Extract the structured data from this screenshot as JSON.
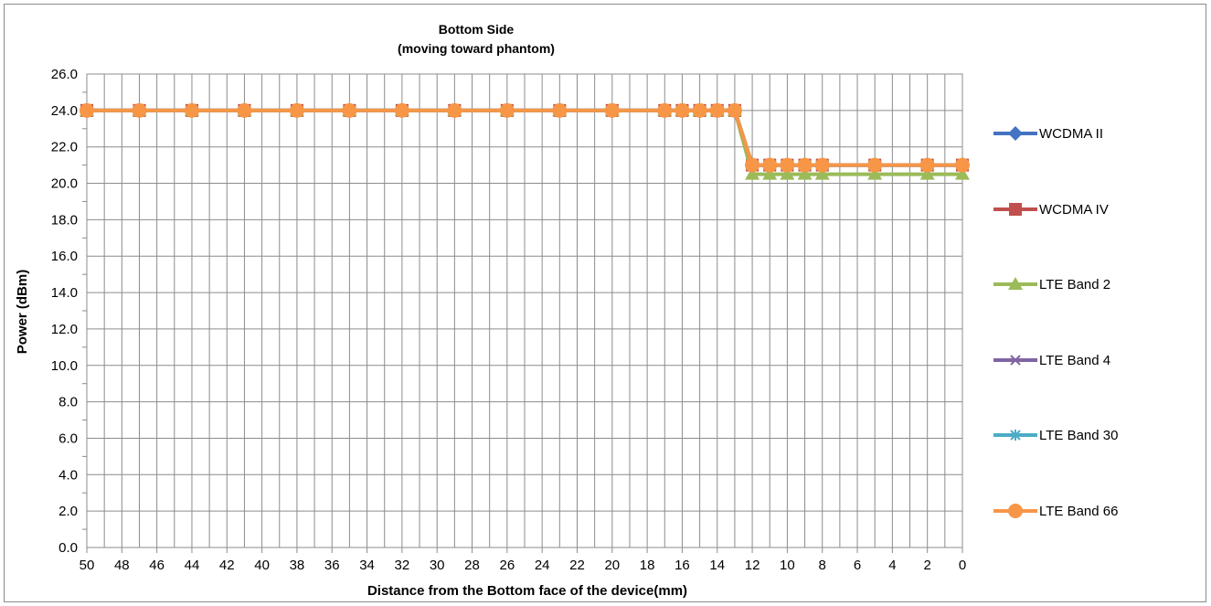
{
  "chart_data": {
    "type": "line",
    "title": "Bottom Side",
    "subtitle": "(moving toward phantom)",
    "xlabel": "Distance from the Bottom face of the device(mm)",
    "ylabel": "Power (dBm)",
    "xlim": [
      50,
      0
    ],
    "ylim": [
      0,
      26
    ],
    "y_ticks": [
      "0.0",
      "2.0",
      "4.0",
      "6.0",
      "8.0",
      "10.0",
      "12.0",
      "14.0",
      "16.0",
      "18.0",
      "20.0",
      "22.0",
      "24.0",
      "26.0"
    ],
    "x_ticks": [
      "50",
      "48",
      "46",
      "44",
      "42",
      "40",
      "38",
      "36",
      "34",
      "32",
      "30",
      "28",
      "26",
      "24",
      "22",
      "20",
      "18",
      "16",
      "14",
      "12",
      "10",
      "8",
      "6",
      "4",
      "2",
      "0"
    ],
    "grid": true,
    "legend_position": "right",
    "x": [
      50,
      47,
      44,
      41,
      38,
      35,
      32,
      29,
      26,
      23,
      20,
      17,
      16,
      15,
      14,
      13,
      12,
      11,
      10,
      9,
      8,
      5,
      2,
      0
    ],
    "series": [
      {
        "name": "WCDMA II",
        "color": "#4472C4",
        "marker": "diamond",
        "values": [
          24,
          24,
          24,
          24,
          24,
          24,
          24,
          24,
          24,
          24,
          24,
          24,
          24,
          24,
          24,
          24,
          21,
          21,
          21,
          21,
          21,
          21,
          21,
          21
        ]
      },
      {
        "name": "WCDMA IV",
        "color": "#C0504D",
        "marker": "square",
        "values": [
          24,
          24,
          24,
          24,
          24,
          24,
          24,
          24,
          24,
          24,
          24,
          24,
          24,
          24,
          24,
          24,
          21,
          21,
          21,
          21,
          21,
          21,
          21,
          21
        ]
      },
      {
        "name": "LTE Band 2",
        "color": "#9BBB59",
        "marker": "triangle",
        "values": [
          24,
          24,
          24,
          24,
          24,
          24,
          24,
          24,
          24,
          24,
          24,
          24,
          24,
          24,
          24,
          24,
          20.5,
          20.5,
          20.5,
          20.5,
          20.5,
          20.5,
          20.5,
          20.5
        ]
      },
      {
        "name": "LTE Band 4",
        "color": "#8064A2",
        "marker": "x",
        "values": [
          24,
          24,
          24,
          24,
          24,
          24,
          24,
          24,
          24,
          24,
          24,
          24,
          24,
          24,
          24,
          24,
          21,
          21,
          21,
          21,
          21,
          21,
          21,
          21
        ]
      },
      {
        "name": "LTE Band 30",
        "color": "#4BACC6",
        "marker": "star",
        "values": [
          24,
          24,
          24,
          24,
          24,
          24,
          24,
          24,
          24,
          24,
          24,
          24,
          24,
          24,
          24,
          24,
          21,
          21,
          21,
          21,
          21,
          21,
          21,
          21
        ]
      },
      {
        "name": "LTE Band 66",
        "color": "#F79646",
        "marker": "circle",
        "values": [
          24,
          24,
          24,
          24,
          24,
          24,
          24,
          24,
          24,
          24,
          24,
          24,
          24,
          24,
          24,
          24,
          21,
          21,
          21,
          21,
          21,
          21,
          21,
          21
        ]
      }
    ]
  }
}
